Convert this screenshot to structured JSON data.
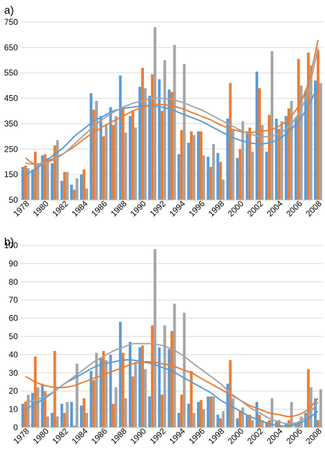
{
  "colors": {
    "s1": "#5b9bd5",
    "s2": "#ed7d31",
    "s3": "#a5a5a5"
  },
  "chart_data": [
    {
      "panel": "a)",
      "type": "bar",
      "categories": [
        1978,
        1979,
        1980,
        1981,
        1982,
        1983,
        1984,
        1985,
        1986,
        1987,
        1988,
        1989,
        1990,
        1991,
        1992,
        1993,
        1994,
        1995,
        1996,
        1997,
        1998,
        1999,
        2000,
        2001,
        2002,
        2003,
        2004,
        2005,
        2006,
        2007,
        2008
      ],
      "x_tick_labels": [
        "1978",
        "1980",
        "1982",
        "1984",
        "1986",
        "1988",
        "1990",
        "1992",
        "1994",
        "1996",
        "1998",
        "2000",
        "2002",
        "2004",
        "2006",
        "2008"
      ],
      "ylim": [
        50,
        750
      ],
      "yticks": [
        50,
        150,
        250,
        350,
        450,
        550,
        650,
        750
      ],
      "grid": true,
      "series": [
        {
          "values": [
            180,
            170,
            225,
            195,
            125,
            110,
            150,
            470,
            380,
            415,
            540,
            380,
            495,
            460,
            525,
            485,
            230,
            275,
            320,
            220,
            235,
            370,
            215,
            320,
            555,
            240,
            370,
            380,
            375,
            480,
            520
          ]
        },
        {
          "values": [
            185,
            240,
            230,
            265,
            160,
            90,
            170,
            405,
            300,
            345,
            415,
            400,
            570,
            545,
            400,
            475,
            325,
            320,
            320,
            180,
            200,
            510,
            250,
            335,
            490,
            385,
            330,
            410,
            605,
            630,
            640
          ]
        },
        {
          "values": [
            175,
            195,
            215,
            285,
            160,
            135,
            95,
            440,
            345,
            380,
            315,
            335,
            490,
            730,
            600,
            660,
            585,
            305,
            225,
            270,
            130,
            330,
            360,
            240,
            345,
            635,
            360,
            440,
            500,
            580,
            510
          ]
        }
      ],
      "trends": [
        {
          "values": [
            150,
            170,
            200,
            230,
            260,
            300,
            330,
            360,
            380,
            400,
            410,
            415,
            420,
            420,
            415,
            405,
            390,
            375,
            360,
            340,
            320,
            300,
            285,
            275,
            270,
            275,
            290,
            320,
            360,
            420,
            500
          ]
        },
        {
          "values": [
            215,
            190,
            200,
            215,
            235,
            260,
            290,
            315,
            340,
            360,
            380,
            400,
            415,
            425,
            425,
            420,
            410,
            395,
            380,
            365,
            345,
            330,
            320,
            315,
            320,
            325,
            340,
            370,
            420,
            510,
            680
          ]
        },
        {
          "values": [
            195,
            190,
            195,
            210,
            235,
            270,
            305,
            340,
            370,
            395,
            415,
            430,
            440,
            450,
            450,
            445,
            435,
            420,
            405,
            385,
            365,
            345,
            325,
            310,
            300,
            300,
            310,
            340,
            390,
            480,
            650
          ]
        }
      ]
    },
    {
      "panel": "b)",
      "type": "bar",
      "categories": [
        1978,
        1979,
        1980,
        1981,
        1982,
        1983,
        1984,
        1985,
        1986,
        1987,
        1988,
        1989,
        1990,
        1991,
        1992,
        1993,
        1994,
        1995,
        1996,
        1997,
        1998,
        1999,
        2000,
        2001,
        2002,
        2003,
        2004,
        2005,
        2006,
        2007,
        2008
      ],
      "x_tick_labels": [
        "1978",
        "1980",
        "1982",
        "1984",
        "1986",
        "1988",
        "1990",
        "1992",
        "1994",
        "1996",
        "1998",
        "2000",
        "2002",
        "2004",
        "2006",
        "2008"
      ],
      "ylim": [
        0,
        100
      ],
      "yticks": [
        0,
        10,
        20,
        30,
        40,
        50,
        60,
        70,
        80,
        90,
        100
      ],
      "grid": true,
      "series": [
        {
          "values": [
            13,
            19,
            24,
            8,
            13,
            14,
            12,
            31,
            38,
            40,
            58,
            47,
            44,
            17,
            44,
            43,
            8,
            13,
            14,
            17,
            7,
            24,
            5,
            7,
            14,
            3,
            3,
            2,
            2,
            8,
            16
          ]
        },
        {
          "values": [
            14,
            39,
            20,
            42,
            8,
            1,
            16,
            26,
            42,
            13,
            41,
            28,
            45,
            56,
            18,
            53,
            18,
            31,
            15,
            17,
            5,
            37,
            9,
            7,
            7,
            4,
            4,
            4,
            3,
            32,
            4
          ]
        },
        {
          "values": [
            18,
            22,
            6,
            6,
            14,
            35,
            8,
            41,
            37,
            22,
            16,
            36,
            32,
            98,
            56,
            68,
            63,
            8,
            10,
            17,
            9,
            16,
            11,
            4,
            4,
            16,
            1,
            14,
            6,
            22,
            21
          ]
        }
      ],
      "trends": [
        {
          "values": [
            10,
            13,
            16,
            20,
            24,
            27,
            30,
            33,
            35,
            36,
            37,
            37,
            36,
            35,
            33,
            31,
            28,
            25,
            22,
            19,
            15,
            12,
            9,
            6,
            4,
            2,
            1,
            1,
            2,
            5,
            9
          ]
        },
        {
          "values": [
            28,
            25,
            23,
            22,
            22,
            23,
            25,
            27,
            29,
            31,
            33,
            35,
            36,
            36,
            35,
            34,
            32,
            30,
            27,
            24,
            21,
            18,
            15,
            12,
            10,
            8,
            7,
            6,
            7,
            10,
            16
          ]
        },
        {
          "values": [
            14,
            15,
            17,
            20,
            24,
            28,
            32,
            36,
            39,
            42,
            44,
            46,
            46,
            46,
            45,
            43,
            40,
            36,
            32,
            28,
            24,
            19,
            15,
            11,
            8,
            5,
            3,
            2,
            3,
            7,
            14
          ]
        }
      ]
    }
  ]
}
